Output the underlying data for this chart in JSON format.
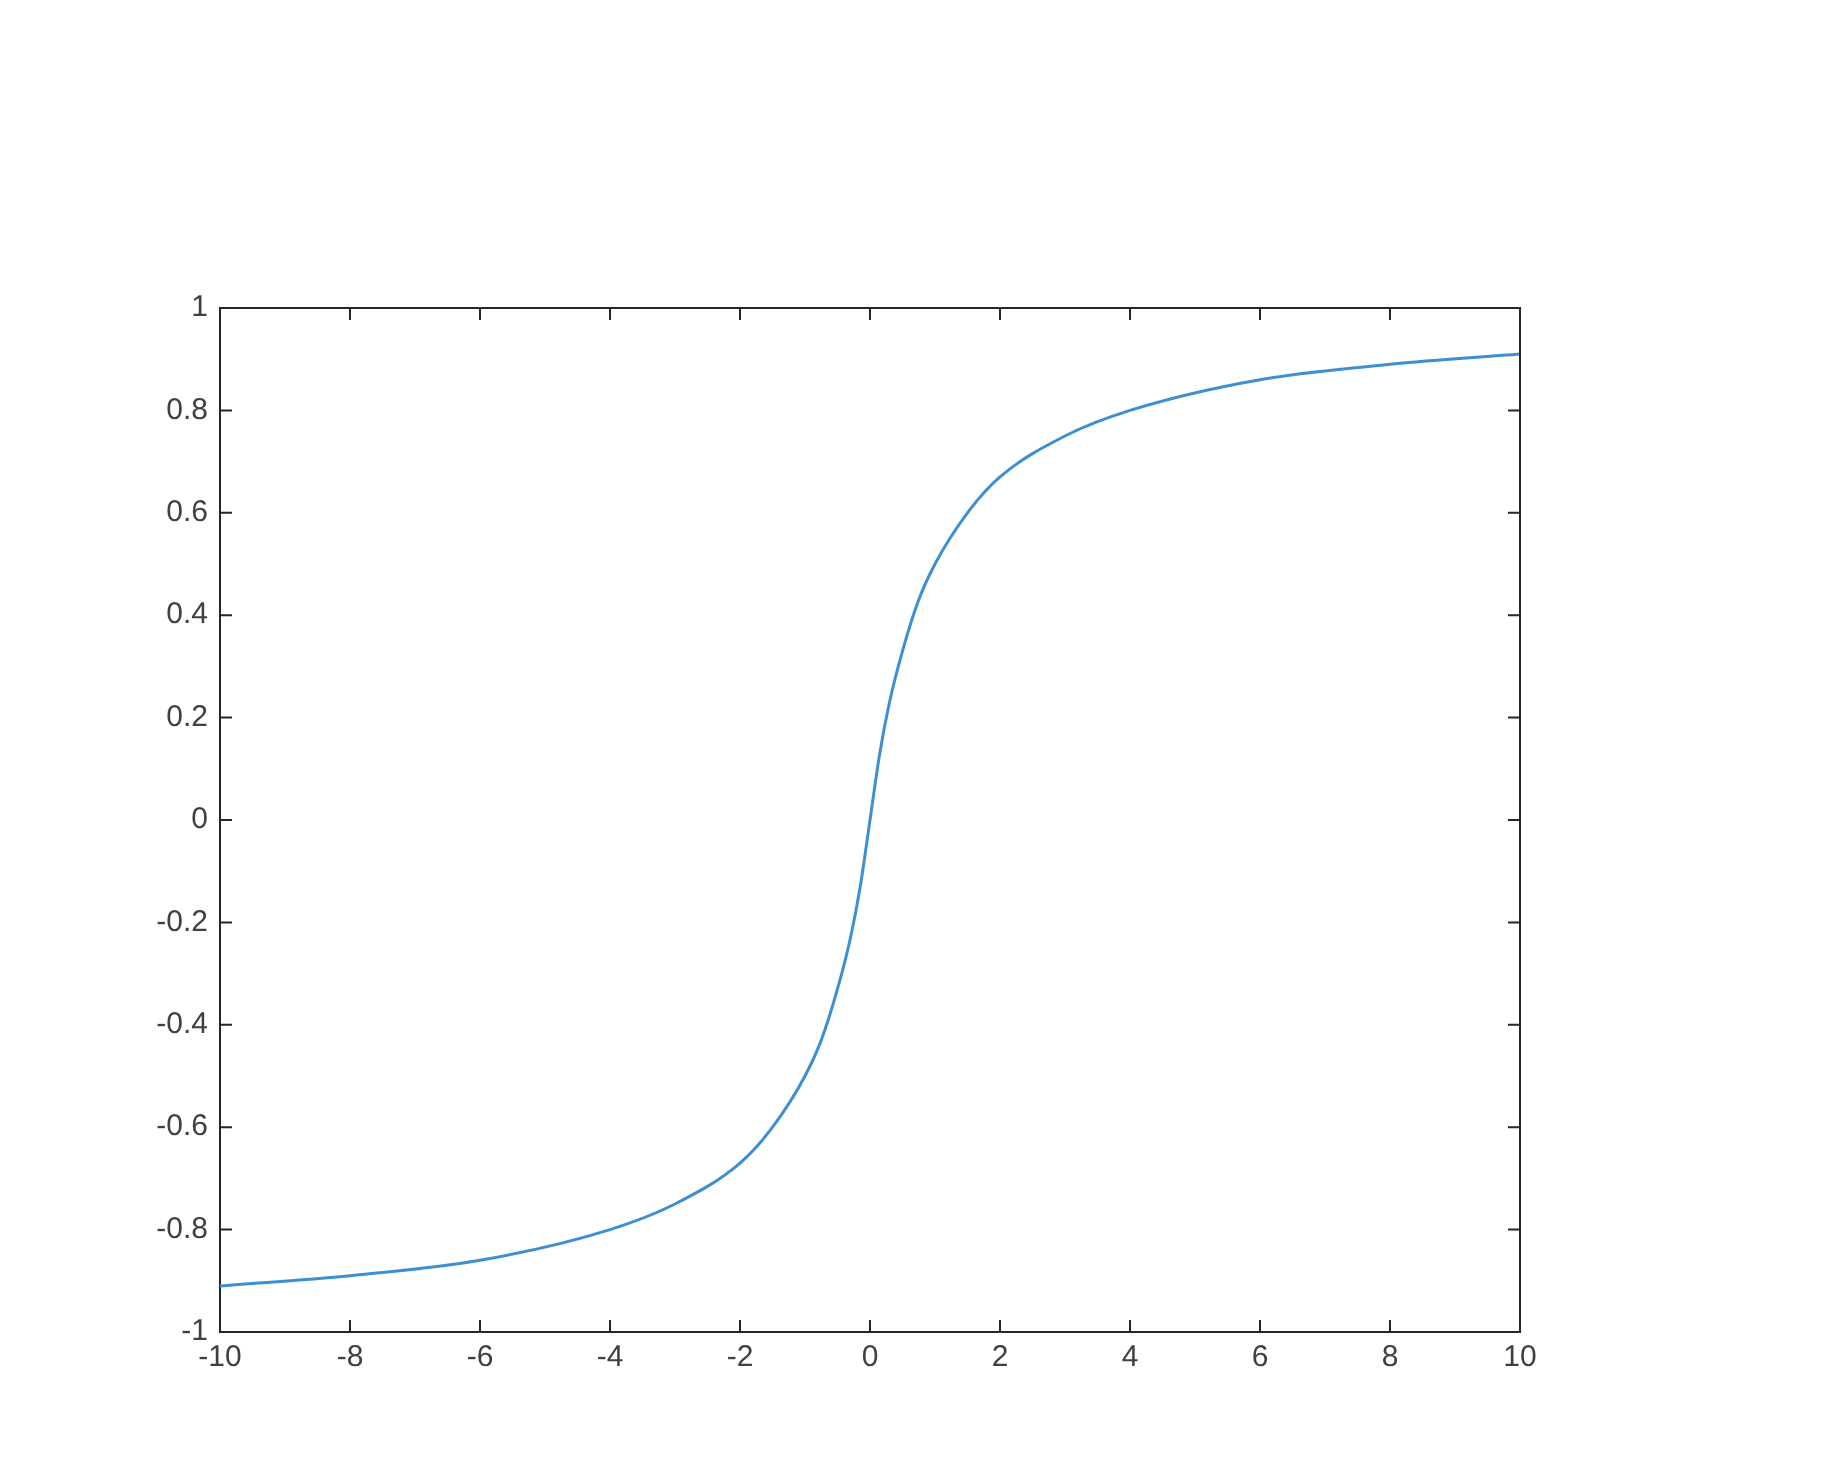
{
  "chart_data": {
    "type": "line",
    "x": [
      -10,
      -8,
      -6,
      -4,
      -3,
      -2,
      -1.5,
      -1,
      -0.75,
      -0.5,
      -0.3,
      -0.15,
      0,
      0.15,
      0.3,
      0.5,
      0.75,
      1,
      1.5,
      2,
      3,
      4,
      6,
      8,
      10
    ],
    "series": [
      {
        "color": "#3d8fd1",
        "values": [
          -0.91,
          -0.89,
          -0.86,
          -0.8,
          -0.75,
          -0.67,
          -0.6,
          -0.5,
          -0.43,
          -0.33,
          -0.23,
          -0.13,
          0,
          0.13,
          0.23,
          0.33,
          0.43,
          0.5,
          0.6,
          0.67,
          0.75,
          0.8,
          0.86,
          0.89,
          0.91
        ]
      }
    ],
    "xlim": [
      -10,
      10
    ],
    "ylim": [
      -1,
      1
    ],
    "xticks": [
      -10,
      -8,
      -6,
      -4,
      -2,
      0,
      2,
      4,
      6,
      8,
      10
    ],
    "yticks": [
      -1,
      -0.8,
      -0.6,
      -0.4,
      -0.2,
      0,
      0.2,
      0.4,
      0.6,
      0.8,
      1
    ],
    "grid": false,
    "legend": false
  }
}
